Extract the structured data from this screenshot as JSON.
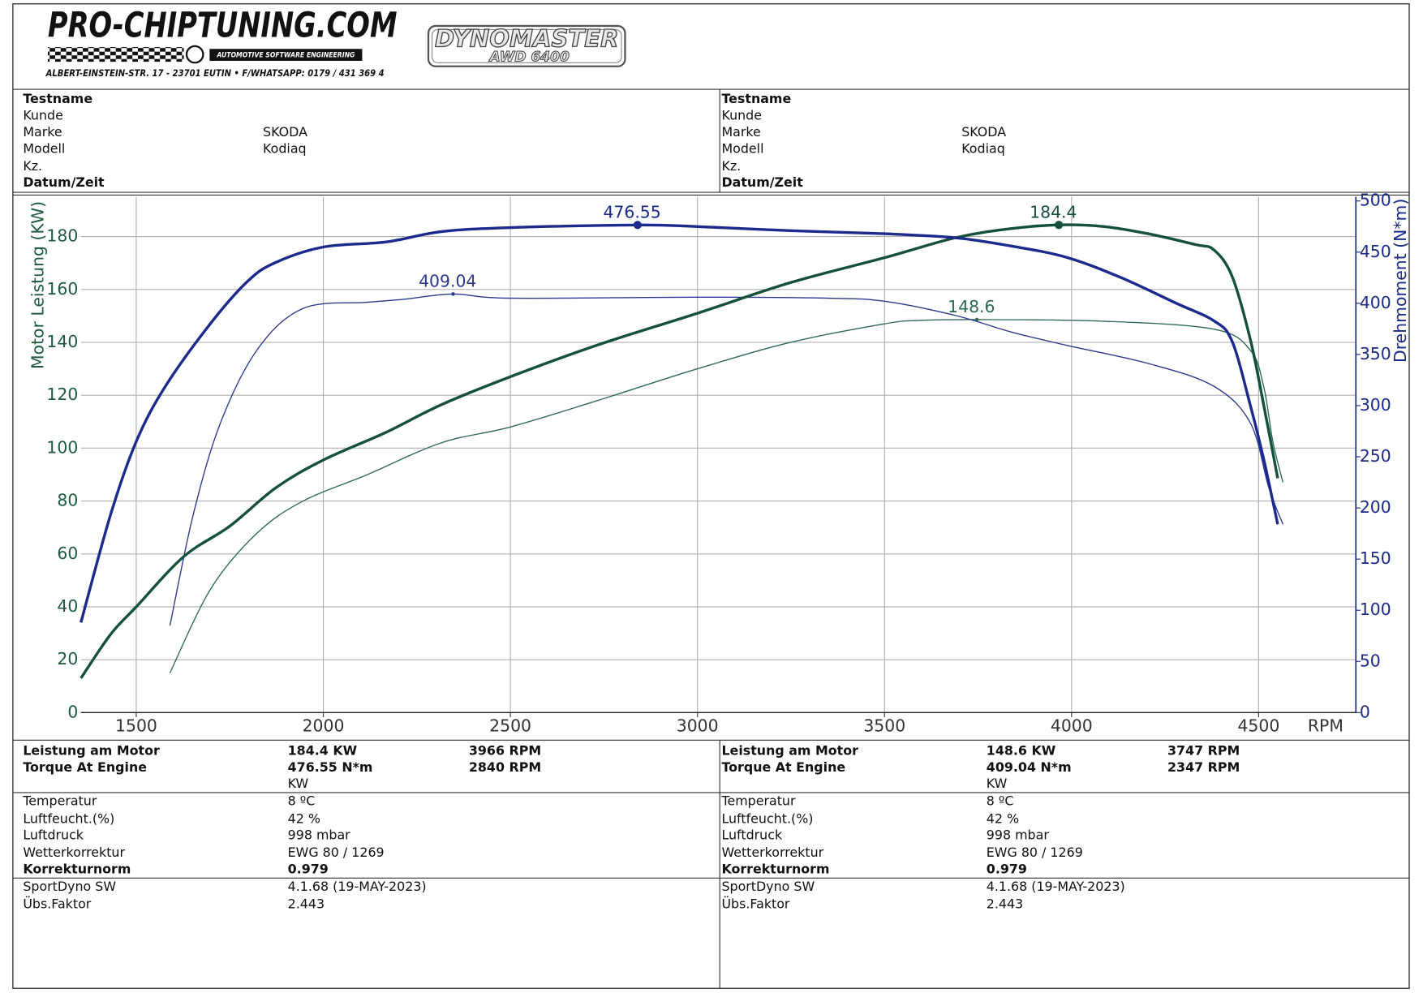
{
  "header": {
    "logo": "PRO-CHIPTUNING.COM",
    "tagline": "AUTOMOTIVE SOFTWARE ENGINEERING",
    "address": "ALBERT-EINSTEIN-STR. 17 - 23701 EUTIN • F/WHATSAPP: 0179 / 431 369 4",
    "dyno_brand": "DYNOMASTER",
    "dyno_model": "AWD 6400"
  },
  "info": {
    "left": [
      {
        "label": "Testname",
        "bold": true
      },
      {
        "label": "Kunde"
      },
      {
        "label": "Marke",
        "value": "SKODA"
      },
      {
        "label": "Modell",
        "value": "Kodiaq"
      },
      {
        "label": "Kz."
      },
      {
        "label": "Datum/Zeit",
        "bold": true
      }
    ],
    "right": [
      {
        "label": "Testname",
        "bold": true
      },
      {
        "label": "Kunde"
      },
      {
        "label": "Marke",
        "value": "SKODA"
      },
      {
        "label": "Modell",
        "value": "Kodiaq"
      },
      {
        "label": "Kz."
      },
      {
        "label": "Datum/Zeit",
        "bold": true
      }
    ]
  },
  "chart_data": {
    "type": "line",
    "x_label": "RPM",
    "y_label": "Motor Leistung (KW)",
    "y2_label": "Drehmoment (N*m)",
    "xlim": [
      1352,
      4760
    ],
    "xticks": [
      1500,
      2000,
      2500,
      3000,
      3500,
      4000,
      4500
    ],
    "ylim": [
      0,
      195
    ],
    "yticks": [
      0,
      20,
      40,
      60,
      80,
      100,
      120,
      140,
      160,
      180
    ],
    "y2lim": [
      0,
      504
    ],
    "y2ticks": [
      0,
      50,
      100,
      150,
      200,
      250,
      300,
      350,
      400,
      450,
      500
    ],
    "grid": true,
    "series": [
      {
        "color": "#15503a",
        "width": 3,
        "axis": "y",
        "x": [
          1352,
          1431,
          1500,
          1627,
          1750,
          1873,
          2000,
          2168,
          2315,
          2500,
          2733,
          3000,
          3249,
          3500,
          3691,
          3838,
          3966,
          4084,
          4207,
          4330,
          4380,
          4429,
          4478,
          4514,
          4551
        ],
        "values": [
          13,
          29.5,
          40,
          59,
          70.5,
          85,
          95.5,
          106,
          116.4,
          127,
          139,
          151,
          162.6,
          172,
          179.6,
          183,
          184.4,
          183.8,
          181,
          177,
          175,
          165,
          141,
          116,
          88.6
        ]
      },
      {
        "color": "#1b2a8c",
        "width": 3,
        "axis": "y2",
        "x": [
          1352,
          1431,
          1500,
          1578,
          1700,
          1799,
          1873,
          2000,
          2168,
          2315,
          2500,
          2840,
          3000,
          3249,
          3500,
          3691,
          3838,
          3986,
          4133,
          4280,
          4380,
          4429,
          4478,
          4514,
          4551
        ],
        "values": [
          88,
          193,
          265,
          319,
          381,
          422,
          440,
          455,
          460,
          470,
          474,
          476.55,
          475,
          471,
          468,
          464,
          456,
          445,
          425,
          400,
          383,
          363,
          300,
          247,
          184
        ]
      },
      {
        "color": "#2c6a4e",
        "width": 1.2,
        "axis": "y",
        "x": [
          1590,
          1700,
          1824,
          1946,
          2118,
          2315,
          2500,
          2733,
          3000,
          3249,
          3500,
          3593,
          3747,
          4084,
          4380,
          4478,
          4514,
          4538,
          4565
        ],
        "values": [
          15,
          47,
          68,
          80,
          90,
          102,
          108,
          118,
          130,
          140,
          147,
          148.3,
          148.6,
          148,
          145,
          137,
          123,
          102.5,
          87
        ]
      },
      {
        "color": "#2a398f",
        "width": 1.2,
        "axis": "y2",
        "x": [
          1590,
          1652,
          1725,
          1824,
          1946,
          2118,
          2217,
          2347,
          2500,
          3000,
          3347,
          3500,
          3691,
          3838,
          3986,
          4207,
          4380,
          4478,
          4527,
          4565
        ],
        "values": [
          85,
          193,
          283,
          355,
          395,
          401,
          404,
          409.04,
          405,
          406,
          405,
          402,
          388,
          372,
          359,
          341,
          319,
          283,
          220,
          184
        ]
      }
    ]
  },
  "results": {
    "left": [
      {
        "label": "Leistung am Motor",
        "value": "184.4 KW",
        "rpm": "3966 RPM"
      },
      {
        "label": "Torque At Engine",
        "value": "476.55 N*m",
        "rpm": "2840 RPM"
      },
      {
        "value": "KW"
      }
    ],
    "right": [
      {
        "label": "Leistung am Motor",
        "value": "148.6 KW",
        "rpm": "3747 RPM"
      },
      {
        "label": "Torque At Engine",
        "value": "409.04 N*m",
        "rpm": "2347 RPM"
      },
      {
        "value": "KW"
      }
    ]
  },
  "conditions": {
    "left": [
      {
        "label": "Temperatur",
        "value": "8 ºC"
      },
      {
        "label": "Luftfeucht.(%)",
        "value": "42 %"
      },
      {
        "label": "Luftdruck",
        "value": "998 mbar"
      },
      {
        "label": "Wetterkorrektur",
        "value": "EWG 80 / 1269"
      },
      {
        "label": "Korrekturnorm",
        "value": "0.979",
        "bold": true
      }
    ],
    "right": [
      {
        "label": "Temperatur",
        "value": "8 ºC"
      },
      {
        "label": "Luftfeucht.(%)",
        "value": "42 %"
      },
      {
        "label": "Luftdruck",
        "value": "998 mbar"
      },
      {
        "label": "Wetterkorrektur",
        "value": "EWG 80 / 1269"
      },
      {
        "label": "Korrekturnorm",
        "value": "0.979",
        "bold": true
      }
    ]
  },
  "software": {
    "left": [
      {
        "label": "SportDyno SW",
        "value": "4.1.68 (19-MAY-2023)"
      },
      {
        "label": "Übs.Faktor",
        "value": "2.443"
      }
    ],
    "right": [
      {
        "label": "SportDyno SW",
        "value": "4.1.68 (19-MAY-2023)"
      },
      {
        "label": "Übs.Faktor",
        "value": "2.443"
      }
    ]
  }
}
